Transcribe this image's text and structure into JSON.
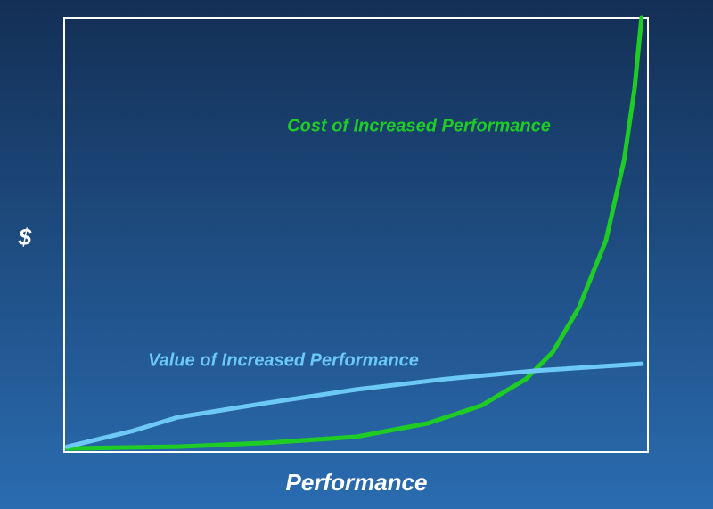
{
  "chart_data": {
    "type": "line",
    "x_label": "Performance",
    "y_label": "$",
    "xlim": [
      0,
      100
    ],
    "ylim": [
      0,
      100
    ],
    "series": [
      {
        "name": "Cost of Increased Performance",
        "color": "#1fcc24",
        "x": [
          0.5,
          19.5,
          34.8,
          50.1,
          62.3,
          71.5,
          79.1,
          83.7,
          88.2,
          92.8,
          95.9,
          97.7,
          98.9
        ],
        "values": [
          0.8,
          1.2,
          2.1,
          3.5,
          6.6,
          10.7,
          16.8,
          23.0,
          33.3,
          48.7,
          67.1,
          83.6,
          100
        ]
      },
      {
        "name": "Value of Increased Performance",
        "color": "#6cc8f5",
        "x": [
          0.5,
          11.9,
          19.5,
          34.8,
          50.1,
          65.3,
          80.6,
          98.9
        ],
        "values": [
          1.2,
          4.9,
          8.0,
          11.3,
          14.4,
          16.8,
          18.7,
          20.3
        ]
      }
    ]
  }
}
